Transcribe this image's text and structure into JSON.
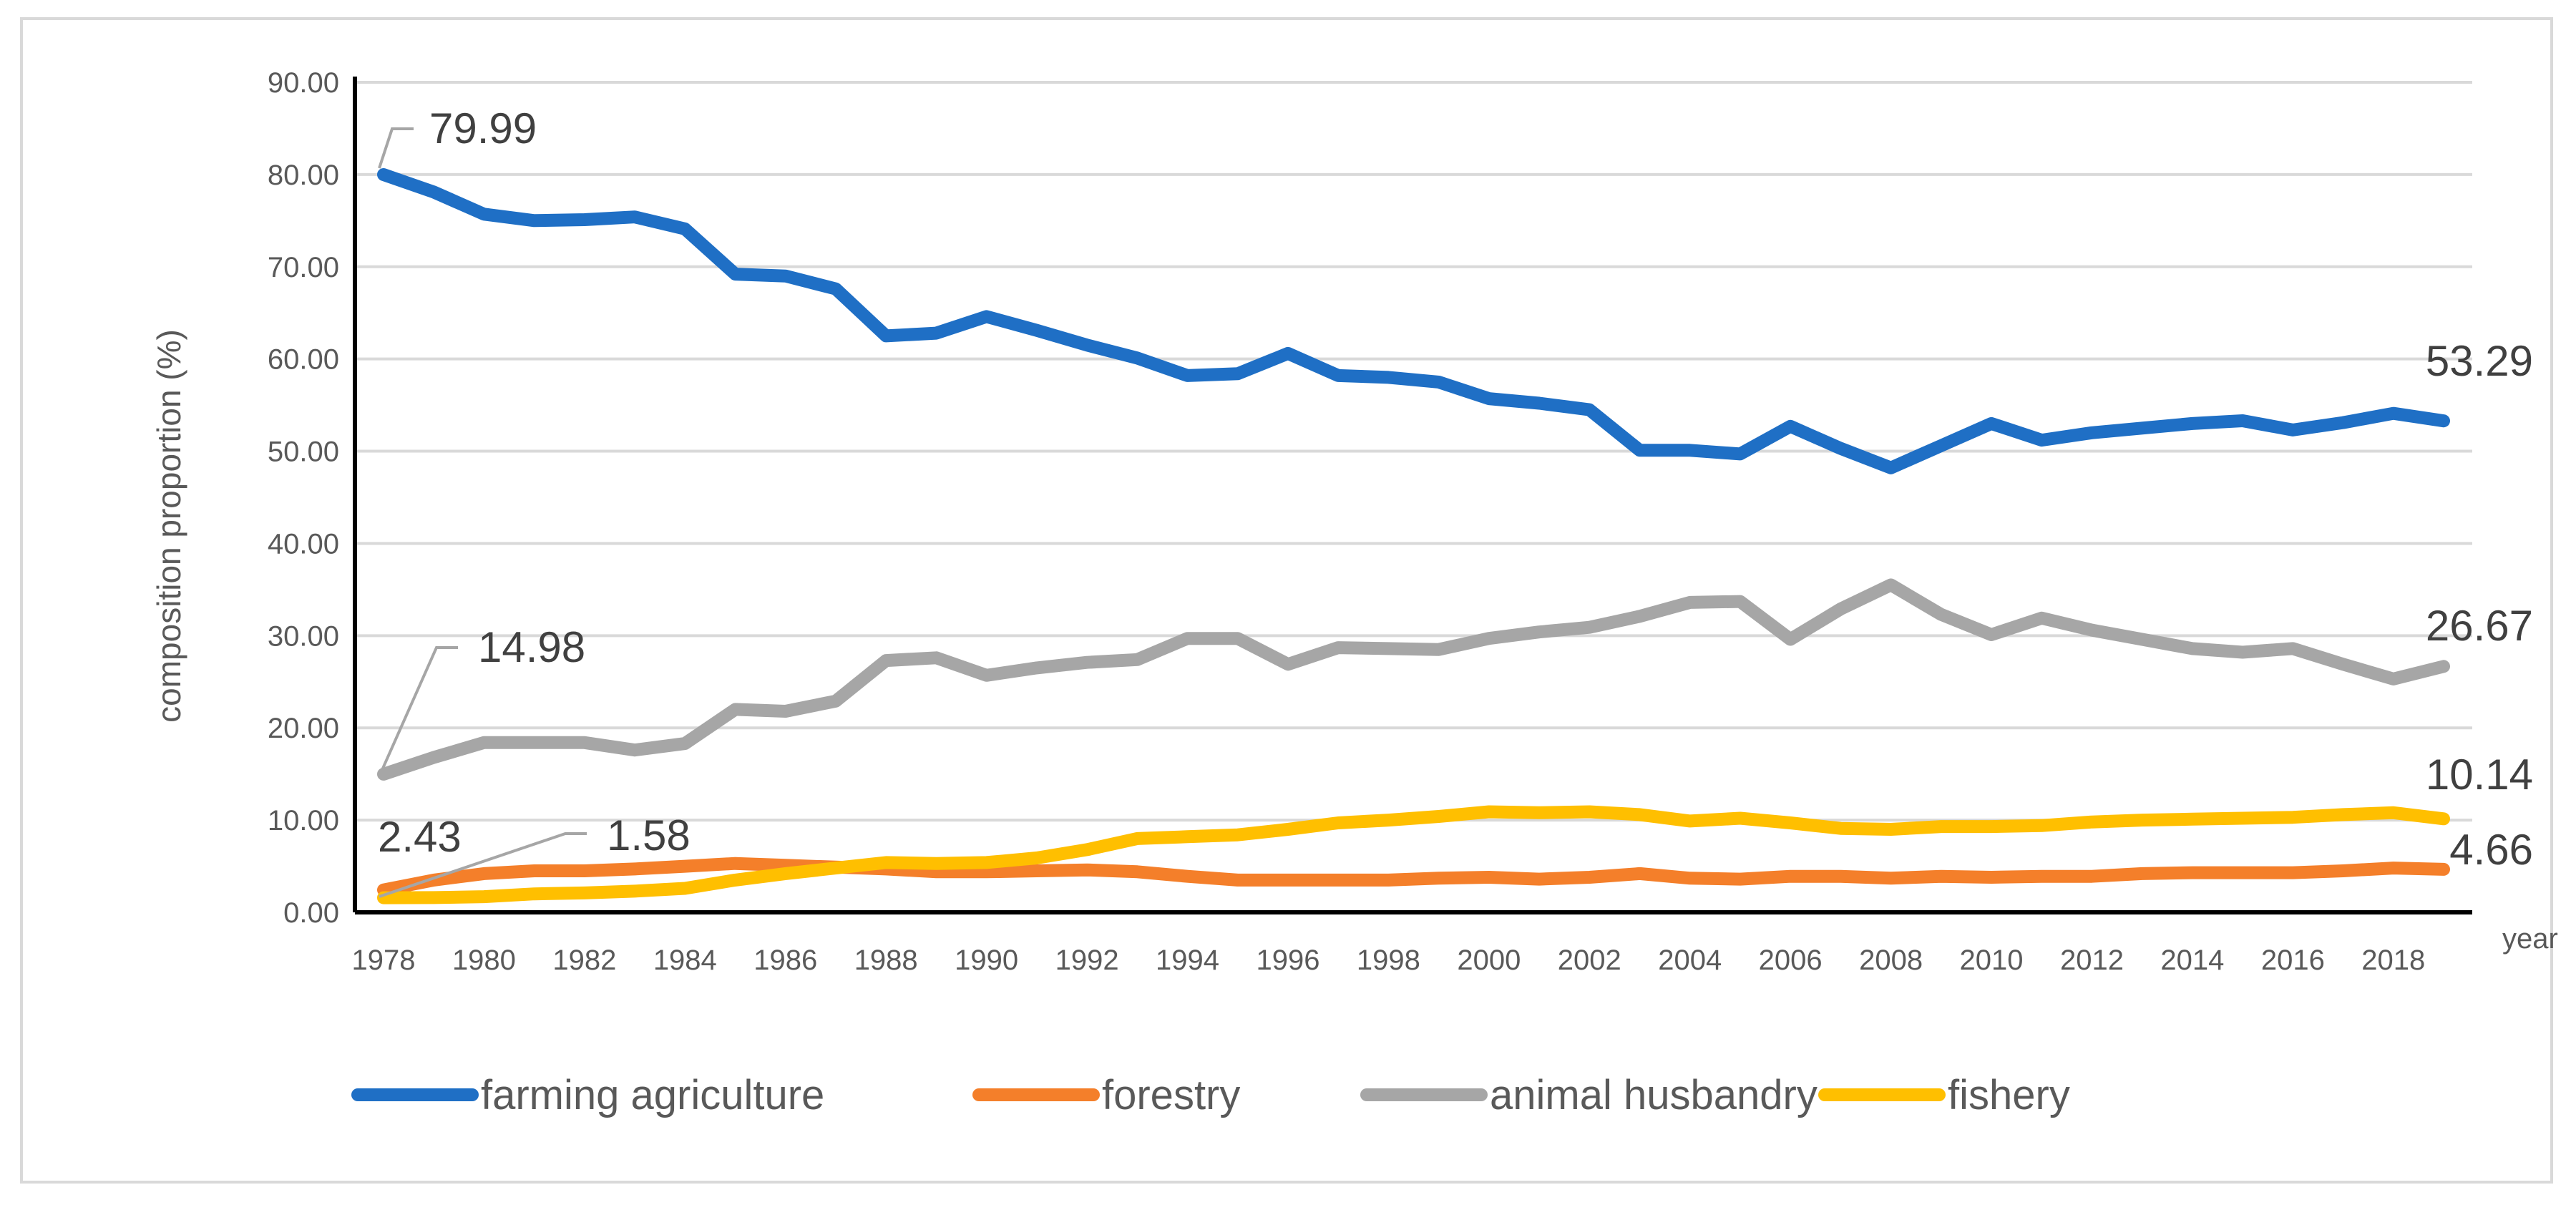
{
  "chart_data": {
    "type": "line",
    "title": "",
    "xlabel": "year",
    "ylabel": "composition proportion (%)",
    "ylim": [
      0,
      90
    ],
    "y_ticks": [
      "0.00",
      "10.00",
      "20.00",
      "30.00",
      "40.00",
      "50.00",
      "60.00",
      "70.00",
      "80.00",
      "90.00"
    ],
    "x_tick_labels": [
      "1978",
      "1980",
      "1982",
      "1984",
      "1986",
      "1988",
      "1990",
      "1992",
      "1994",
      "1996",
      "1998",
      "2000",
      "2002",
      "2004",
      "2006",
      "2008",
      "2010",
      "2012",
      "2014",
      "2016",
      "2018"
    ],
    "grid": true,
    "legend_position": "bottom",
    "x": [
      1978,
      1979,
      1980,
      1981,
      1982,
      1983,
      1984,
      1985,
      1986,
      1987,
      1988,
      1989,
      1990,
      1991,
      1992,
      1993,
      1994,
      1995,
      1996,
      1997,
      1998,
      1999,
      2000,
      2001,
      2002,
      2003,
      2004,
      2005,
      2006,
      2007,
      2008,
      2009,
      2010,
      2011,
      2012,
      2013,
      2014,
      2015,
      2016,
      2017,
      2018,
      2019
    ],
    "series": [
      {
        "name": "farming agriculture",
        "color": "#1f6fc5",
        "values": [
          79.99,
          78.1,
          75.7,
          75.0,
          75.1,
          75.4,
          74.1,
          69.2,
          69.0,
          67.6,
          62.5,
          62.8,
          64.6,
          63.1,
          61.5,
          60.1,
          58.2,
          58.4,
          60.6,
          58.2,
          58.0,
          57.5,
          55.7,
          55.2,
          54.5,
          50.1,
          50.1,
          49.7,
          52.7,
          50.3,
          48.2,
          50.6,
          53.0,
          51.2,
          52.0,
          52.5,
          53.0,
          53.3,
          52.3,
          53.1,
          54.1,
          53.29
        ],
        "labels": [
          {
            "index": 0,
            "text": "79.99"
          },
          {
            "index": 41,
            "text": "53.29"
          }
        ]
      },
      {
        "name": "forestry",
        "color": "#f47f2a",
        "values": [
          2.43,
          3.5,
          4.2,
          4.5,
          4.5,
          4.7,
          5.0,
          5.3,
          5.1,
          4.9,
          4.7,
          4.4,
          4.4,
          4.5,
          4.6,
          4.4,
          3.9,
          3.5,
          3.5,
          3.5,
          3.5,
          3.7,
          3.8,
          3.6,
          3.8,
          4.2,
          3.7,
          3.6,
          3.9,
          3.9,
          3.7,
          3.9,
          3.8,
          3.9,
          3.9,
          4.2,
          4.3,
          4.3,
          4.3,
          4.5,
          4.8,
          4.66
        ],
        "labels": [
          {
            "index": 0,
            "text": "2.43"
          },
          {
            "index": 41,
            "text": "4.66"
          }
        ]
      },
      {
        "name": "animal husbandry",
        "color": "#a6a6a6",
        "values": [
          14.98,
          16.8,
          18.4,
          18.4,
          18.4,
          17.6,
          18.3,
          22.0,
          21.8,
          22.9,
          27.3,
          27.6,
          25.7,
          26.5,
          27.1,
          27.4,
          29.7,
          29.7,
          26.9,
          28.7,
          28.6,
          28.5,
          29.7,
          30.4,
          30.9,
          32.1,
          33.6,
          33.7,
          29.6,
          32.9,
          35.5,
          32.3,
          30.1,
          31.9,
          30.6,
          29.6,
          28.6,
          28.2,
          28.6,
          26.9,
          25.3,
          26.67
        ],
        "labels": [
          {
            "index": 0,
            "text": "14.98"
          },
          {
            "index": 41,
            "text": "26.67"
          }
        ]
      },
      {
        "name": "fishery",
        "color": "#ffbf00",
        "values": [
          1.58,
          1.6,
          1.7,
          2.0,
          2.1,
          2.3,
          2.6,
          3.5,
          4.2,
          4.8,
          5.4,
          5.3,
          5.4,
          5.9,
          6.8,
          8.0,
          8.2,
          8.4,
          9.0,
          9.7,
          10.0,
          10.4,
          10.9,
          10.8,
          10.9,
          10.6,
          9.9,
          10.2,
          9.7,
          9.1,
          9.0,
          9.3,
          9.3,
          9.4,
          9.8,
          10.0,
          10.1,
          10.2,
          10.3,
          10.6,
          10.8,
          10.14
        ],
        "labels": [
          {
            "index": 0,
            "text": "1.58"
          },
          {
            "index": 41,
            "text": "10.14"
          }
        ]
      }
    ]
  }
}
